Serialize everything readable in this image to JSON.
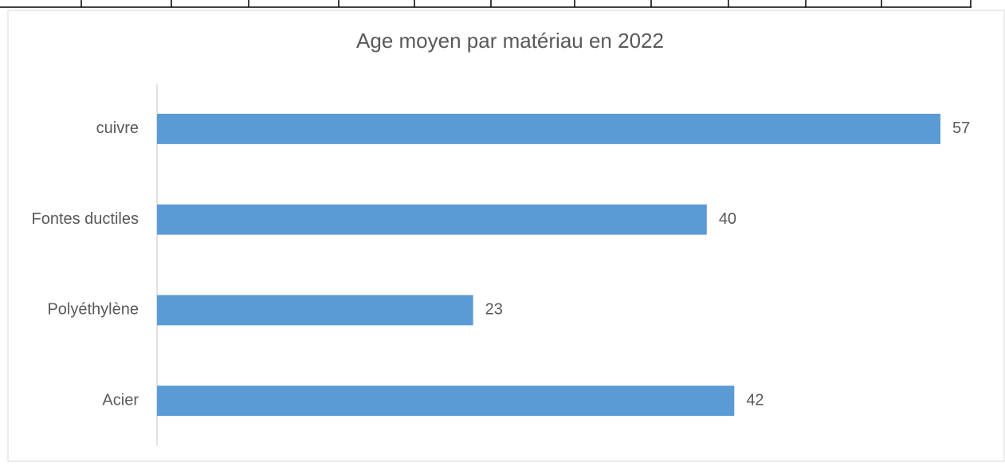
{
  "chart_data": {
    "type": "bar",
    "orientation": "horizontal",
    "title": "Age moyen par matériau en 2022",
    "categories": [
      "cuivre",
      "Fontes ductiles",
      "Polyéthylène",
      "Acier"
    ],
    "values": [
      57,
      40,
      23,
      42
    ],
    "color": "#5b9bd5"
  }
}
